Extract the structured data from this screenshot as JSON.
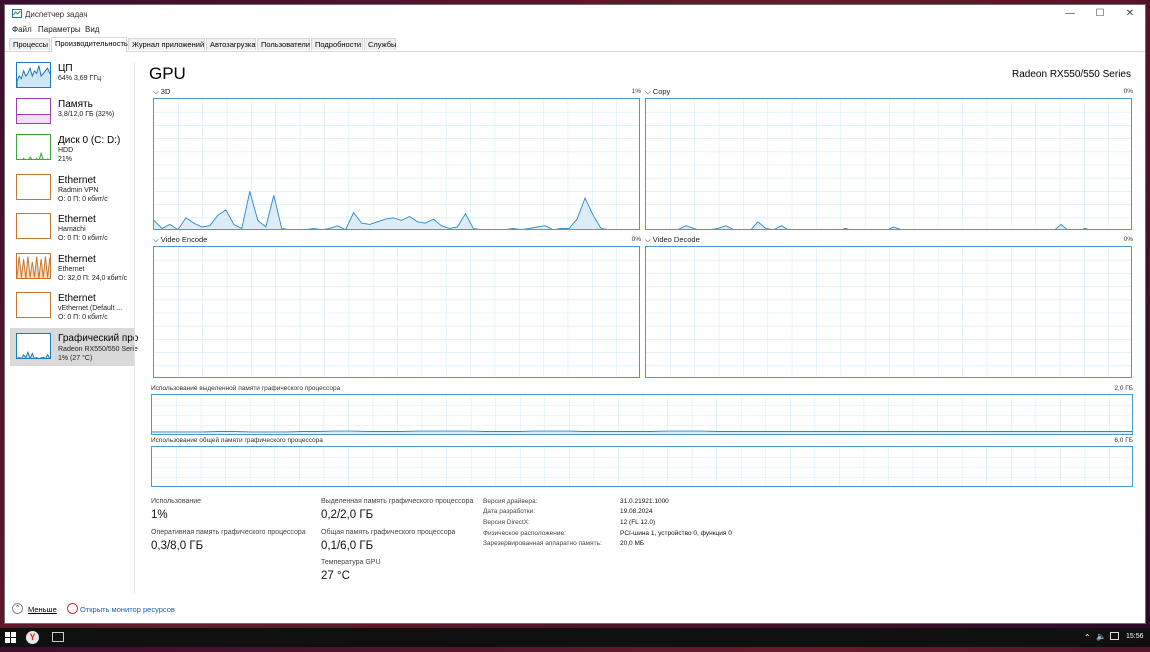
{
  "window": {
    "title": "Диспетчер задач"
  },
  "menu": [
    "Файл",
    "Параметры",
    "Вид"
  ],
  "tabs": [
    "Процессы",
    "Производительность",
    "Журнал приложений",
    "Автозагрузка",
    "Пользователи",
    "Подробности",
    "Службы"
  ],
  "sidebar": [
    {
      "title": "ЦП",
      "line1": "64% 3,69 ГГц",
      "line2": "",
      "color": "#1a7bbf"
    },
    {
      "title": "Память",
      "line1": "3,8/12,0 ГБ (32%)",
      "line2": "",
      "color": "#9a3fb0"
    },
    {
      "title": "Диск 0 (C: D:)",
      "line1": "HDD",
      "line2": "21%",
      "color": "#3fa63f"
    },
    {
      "title": "Ethernet",
      "line1": "Radmin VPN",
      "line2": "О: 0 П: 0 кбит/с",
      "color": "#c8762e"
    },
    {
      "title": "Ethernet",
      "line1": "Hamachi",
      "line2": "О: 0 П: 0 кбит/с",
      "color": "#c8762e"
    },
    {
      "title": "Ethernet",
      "line1": "Ethernet",
      "line2": "О: 32,0 П: 24,0 кбит/с",
      "color": "#c8762e"
    },
    {
      "title": "Ethernet",
      "line1": "vEthernet (Default ...",
      "line2": "О: 0 П: 0 кбит/с",
      "color": "#c8762e"
    },
    {
      "title": "Графический про",
      "line1": "Radeon RX550/550 Serie",
      "line2": "1% (27 °C)",
      "color": "#1a7bbf"
    }
  ],
  "main": {
    "title": "GPU",
    "gpu_name": "Radeon RX550/550 Series"
  },
  "engines": [
    {
      "label": "3D",
      "pct": "1%"
    },
    {
      "label": "Copy",
      "pct": "0%"
    },
    {
      "label": "Video Encode",
      "pct": "0%"
    },
    {
      "label": "Video Decode",
      "pct": "0%"
    }
  ],
  "memory_graphs": [
    {
      "label": "Использование выделенной памяти графического процессора",
      "max": "2,0 ГБ"
    },
    {
      "label": "Использование общей памяти графического процессора",
      "max": "6,0 ГБ"
    }
  ],
  "stats": {
    "usage_label": "Использование",
    "usage_value": "1%",
    "ram_label": "Оперативная память графического процессора",
    "ram_value": "0,3/8,0 ГБ",
    "dedicated_label": "Выделенная память графического процессора",
    "dedicated_value": "0,2/2,0 ГБ",
    "shared_label": "Общая память графического процессора",
    "shared_value": "0,1/6,0 ГБ",
    "temp_label": "Температура GPU",
    "temp_value": "27 °C"
  },
  "info": [
    {
      "label": "Версия драйвера:",
      "value": "31.0.21921.1000"
    },
    {
      "label": "Дата разработки:",
      "value": "19.08.2024"
    },
    {
      "label": "Версия DirectX:",
      "value": "12 (FL 12.0)"
    },
    {
      "label": "Физическое расположение:",
      "value": "PCI-шина 1, устройство 0, функция 0"
    },
    {
      "label": "Зарезервированная аппаратно память:",
      "value": "20,0 МБ"
    }
  ],
  "footer": {
    "less": "Меньше",
    "monitor": "Открыть монитор ресурсов"
  },
  "taskbar": {
    "clock": "15:56"
  },
  "series": {
    "engine_3d": [
      8,
      2,
      5,
      1,
      10,
      6,
      3,
      4,
      12,
      16,
      5,
      2,
      30,
      8,
      3,
      27,
      2,
      1,
      0,
      1,
      2,
      1,
      2,
      4,
      1,
      14,
      6,
      5,
      7,
      9,
      10,
      8,
      11,
      7,
      6,
      9,
      4,
      2,
      3,
      13,
      2,
      1,
      1,
      0,
      1,
      2,
      1,
      2,
      3,
      4,
      1,
      2,
      2,
      9,
      25,
      12,
      2,
      1,
      1,
      1,
      0,
      1
    ],
    "engine_copy": [
      0,
      0,
      0,
      0,
      1,
      4,
      2,
      0,
      1,
      2,
      4,
      1,
      0,
      0,
      7,
      2,
      1,
      4,
      0,
      1,
      0,
      0,
      0,
      1,
      0,
      2,
      0,
      0,
      0,
      1,
      0,
      3,
      1,
      0,
      0,
      0,
      0,
      0,
      1,
      0,
      0,
      1,
      0,
      0,
      0,
      0,
      0,
      0,
      0,
      0,
      1,
      0,
      5,
      0,
      0,
      2,
      0,
      0,
      0,
      0,
      0,
      0
    ],
    "dedicated_mem": [
      10,
      10,
      10,
      10,
      11,
      11,
      10,
      10,
      10,
      11,
      11,
      12,
      12,
      11,
      11,
      11,
      12,
      12,
      12,
      12,
      11,
      11,
      11,
      12,
      12,
      12,
      11,
      11,
      11,
      11,
      11,
      12,
      12,
      12,
      11,
      11,
      11,
      11,
      11,
      11,
      11,
      11,
      11,
      11,
      11,
      11,
      11,
      11,
      11,
      11,
      11,
      11,
      11,
      11,
      11,
      11,
      11,
      11,
      11,
      11
    ]
  }
}
